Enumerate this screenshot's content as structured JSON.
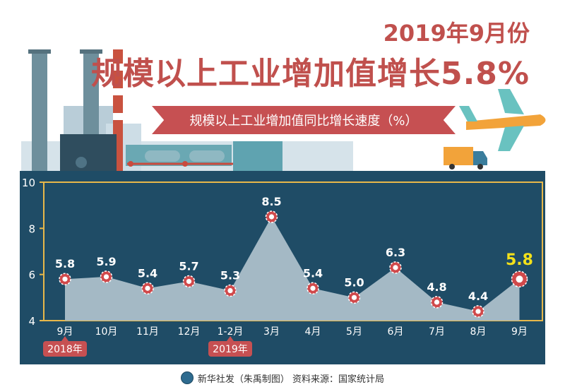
{
  "header": {
    "line1": "2019年9月份",
    "line2": "规模以上工业增加值增长5.8%",
    "banner": "规模以上工业增加值同比增长速度（%）"
  },
  "colors": {
    "title": "#c0504d",
    "banner": "#c65052",
    "panel": "#1f4c66",
    "frame": "#e8b84a",
    "area": "#a4b9c5",
    "gear": "#d0494b",
    "text": "#ffffff",
    "highlight": "#f3e11a",
    "year_tag": "#c65052"
  },
  "chart_data": {
    "type": "area",
    "categories": [
      "9月",
      "10月",
      "11月",
      "12月",
      "1-2月",
      "3月",
      "4月",
      "5月",
      "6月",
      "7月",
      "8月",
      "9月"
    ],
    "values": [
      5.8,
      5.9,
      5.4,
      5.7,
      5.3,
      8.5,
      5.4,
      5.0,
      6.3,
      4.8,
      4.4,
      5.8
    ],
    "data_labels": [
      "5.8",
      "5.9",
      "5.4",
      "5.7",
      "5.3",
      "8.5",
      "5.4",
      "5.0",
      "6.3",
      "4.8",
      "4.4",
      "5.8"
    ],
    "highlight_index": 11,
    "ylim": [
      4,
      10
    ],
    "yticks": [
      "4",
      "6",
      "8",
      "10"
    ],
    "year_tags": [
      {
        "label": "2018年",
        "index": 0
      },
      {
        "label": "2019年",
        "index": 4
      }
    ],
    "grid": false,
    "title": "",
    "xlabel": "",
    "ylabel": ""
  },
  "footer": {
    "text": "新华社发（朱禹制图）  资料来源：国家统计局"
  }
}
